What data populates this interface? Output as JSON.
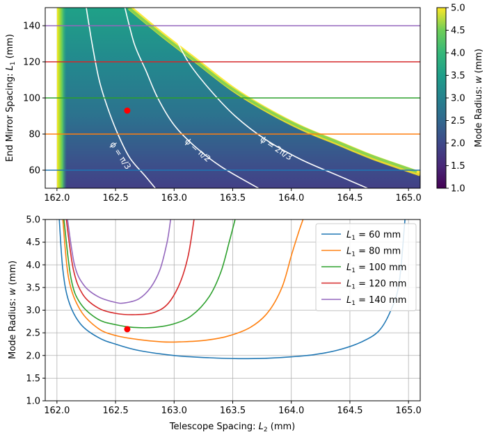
{
  "chart_data": [
    {
      "type": "heatmap",
      "name": "mode-radius-map",
      "xlim": [
        161.9,
        165.1
      ],
      "ylim": [
        50,
        150
      ],
      "x_ticks": [
        "162.0",
        "162.5",
        "163.0",
        "163.5",
        "164.0",
        "164.5",
        "165.0"
      ],
      "x_tick_values": [
        162.0,
        162.5,
        163.0,
        163.5,
        164.0,
        164.5,
        165.0
      ],
      "y_ticks": [
        "60",
        "80",
        "100",
        "120",
        "140"
      ],
      "y_tick_values": [
        60,
        80,
        100,
        120,
        140
      ],
      "ylabel_prefix": "End Mirror Spacing: ",
      "ylabel_var": "L",
      "ylabel_sub": "1",
      "ylabel_unit": " (mm)",
      "colorbar": {
        "label_prefix": "Mode Radius: ",
        "label_var": "w",
        "label_unit": " (mm)",
        "range": [
          1.0,
          5.0
        ],
        "ticks": [
          "1.0",
          "1.5",
          "2.0",
          "2.5",
          "3.0",
          "3.5",
          "4.0",
          "4.5",
          "5.0"
        ],
        "tick_values": [
          1.0,
          1.5,
          2.0,
          2.5,
          3.0,
          3.5,
          4.0,
          4.5,
          5.0
        ]
      },
      "stable_region": {
        "left_boundary_x": 162.0,
        "right_boundary": [
          [
            162.62,
            150
          ],
          [
            162.9,
            135
          ],
          [
            163.2,
            120
          ],
          [
            163.5,
            105
          ],
          [
            163.8,
            93
          ],
          [
            164.1,
            83
          ],
          [
            164.4,
            75
          ],
          [
            164.7,
            67
          ],
          [
            165.1,
            58
          ]
        ]
      },
      "horizontal_lines": [
        {
          "label": "L1 = 60 mm",
          "y": 60,
          "color": "#1f77b4"
        },
        {
          "label": "L1 = 80 mm",
          "y": 80,
          "color": "#ff7f0e"
        },
        {
          "label": "L1 = 100 mm",
          "y": 100,
          "color": "#2ca02c"
        },
        {
          "label": "L1 = 120 mm",
          "y": 120,
          "color": "#d62728"
        },
        {
          "label": "L1 = 140 mm",
          "y": 140,
          "color": "#9467bd"
        }
      ],
      "contours": [
        {
          "label": "ϕ = π/3",
          "points": [
            [
              162.25,
              150
            ],
            [
              162.3,
              130
            ],
            [
              162.36,
              110
            ],
            [
              162.43,
              95
            ],
            [
              162.52,
              80
            ],
            [
              162.62,
              67
            ],
            [
              162.75,
              57
            ],
            [
              162.84,
              50
            ]
          ],
          "label_at": [
            162.54,
            68
          ]
        },
        {
          "label": "ϕ = π/2",
          "points": [
            [
              162.58,
              150
            ],
            [
              162.66,
              130
            ],
            [
              162.76,
              115
            ],
            [
              162.86,
              100
            ],
            [
              163.0,
              85
            ],
            [
              163.18,
              73
            ],
            [
              163.4,
              62
            ],
            [
              163.72,
              50
            ]
          ],
          "label_at": [
            163.2,
            71
          ]
        },
        {
          "label": "ϕ = 2π/3",
          "points": [
            [
              162.9,
              150
            ],
            [
              163.0,
              135
            ],
            [
              163.12,
              120
            ],
            [
              163.3,
              105
            ],
            [
              163.52,
              90
            ],
            [
              163.78,
              77
            ],
            [
              164.08,
              66
            ],
            [
              164.4,
              57
            ],
            [
              164.65,
              50
            ]
          ],
          "label_at": [
            163.87,
            72
          ]
        }
      ],
      "marker": {
        "x": 162.6,
        "y": 93,
        "color": "#ff0000"
      }
    },
    {
      "type": "line",
      "name": "mode-radius-vs-spacing",
      "xlim": [
        161.9,
        165.1
      ],
      "ylim": [
        1.0,
        5.0
      ],
      "x_ticks": [
        "162.0",
        "162.5",
        "163.0",
        "163.5",
        "164.0",
        "164.5",
        "165.0"
      ],
      "x_tick_values": [
        162.0,
        162.5,
        163.0,
        163.5,
        164.0,
        164.5,
        165.0
      ],
      "y_ticks": [
        "1.0",
        "1.5",
        "2.0",
        "2.5",
        "3.0",
        "3.5",
        "4.0",
        "4.5",
        "5.0"
      ],
      "y_tick_values": [
        1.0,
        1.5,
        2.0,
        2.5,
        3.0,
        3.5,
        4.0,
        4.5,
        5.0
      ],
      "xlabel_prefix": "Telescope Spacing: ",
      "xlabel_var": "L",
      "xlabel_sub": "2",
      "xlabel_unit": " (mm)",
      "ylabel_prefix": "Mode Radius: ",
      "ylabel_var": "w",
      "ylabel_unit": " (mm)",
      "grid": true,
      "legend_position": "top-right",
      "series": [
        {
          "name": "L1 = 60 mm",
          "legend_value": " = 60 mm",
          "color": "#1f77b4",
          "x": [
            162.02,
            162.05,
            162.1,
            162.2,
            162.35,
            162.5,
            162.7,
            163.0,
            163.3,
            163.55,
            163.8,
            164.0,
            164.2,
            164.4,
            164.6,
            164.75,
            164.85,
            164.92,
            164.97
          ],
          "y": [
            5.0,
            3.9,
            3.2,
            2.7,
            2.4,
            2.25,
            2.11,
            2.0,
            1.95,
            1.93,
            1.94,
            1.97,
            2.02,
            2.12,
            2.3,
            2.55,
            3.0,
            3.6,
            5.0
          ]
        },
        {
          "name": "L1 = 80 mm",
          "legend_value": " = 80 mm",
          "color": "#ff7f0e",
          "x": [
            162.05,
            162.1,
            162.2,
            162.35,
            162.5,
            162.7,
            162.9,
            163.05,
            163.25,
            163.45,
            163.65,
            163.8,
            163.92,
            164.0,
            164.06,
            164.1
          ],
          "y": [
            5.0,
            3.7,
            3.0,
            2.6,
            2.44,
            2.35,
            2.3,
            2.3,
            2.33,
            2.42,
            2.62,
            2.95,
            3.5,
            4.2,
            4.7,
            5.0
          ]
        },
        {
          "name": "L1 = 100 mm",
          "legend_value": " = 100 mm",
          "color": "#2ca02c",
          "x": [
            162.06,
            162.12,
            162.2,
            162.35,
            162.5,
            162.65,
            162.83,
            163.0,
            163.15,
            163.3,
            163.4,
            163.47,
            163.52
          ],
          "y": [
            5.0,
            3.7,
            3.15,
            2.8,
            2.68,
            2.62,
            2.62,
            2.7,
            2.88,
            3.3,
            3.85,
            4.5,
            5.0
          ]
        },
        {
          "name": "L1 = 120 mm",
          "legend_value": " = 120 mm",
          "color": "#d62728",
          "x": [
            162.08,
            162.14,
            162.22,
            162.35,
            162.5,
            162.67,
            162.83,
            162.95,
            163.05,
            163.12,
            163.17
          ],
          "y": [
            5.0,
            3.9,
            3.35,
            3.05,
            2.93,
            2.9,
            2.95,
            3.15,
            3.6,
            4.2,
            5.0
          ]
        },
        {
          "name": "L1 = 140 mm",
          "legend_value": " = 140 mm",
          "color": "#9467bd",
          "x": [
            162.09,
            162.15,
            162.23,
            162.35,
            162.5,
            162.58,
            162.7,
            162.8,
            162.88,
            162.94,
            162.97
          ],
          "y": [
            5.0,
            4.0,
            3.55,
            3.3,
            3.17,
            3.16,
            3.25,
            3.5,
            3.9,
            4.5,
            5.0
          ]
        }
      ],
      "marker": {
        "x": 162.6,
        "y": 2.58,
        "color": "#ff0000"
      },
      "legend_var": "L",
      "legend_sub": "1"
    }
  ]
}
